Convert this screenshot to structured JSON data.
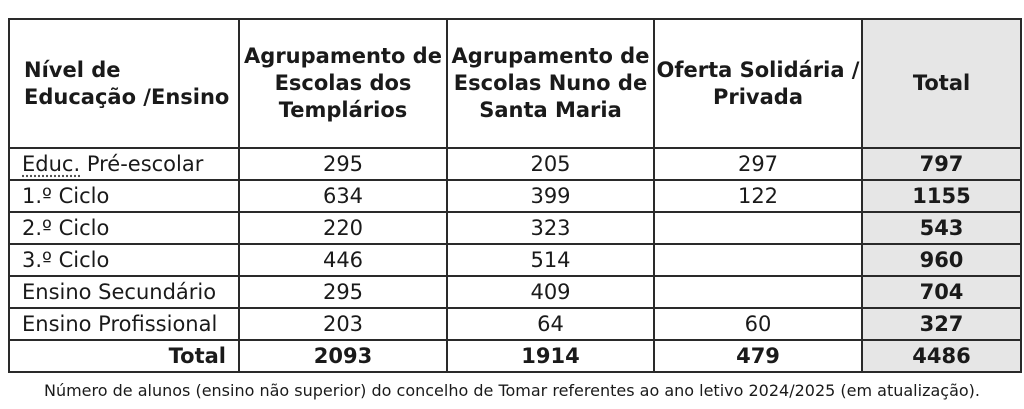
{
  "table": {
    "headers": [
      "Nível de Educação /Ensino",
      "Agrupamento de Escolas dos Templários",
      "Agrupamento de Escolas Nuno de Santa Maria",
      "Oferta Solidária / Privada",
      "Total"
    ],
    "rows": [
      {
        "label_a": "Educ.",
        "label_b": " Pré-escolar",
        "c1": "295",
        "c2": "205",
        "c3": "297",
        "total": "797"
      },
      {
        "label": "1.º Ciclo",
        "c1": "634",
        "c2": "399",
        "c3": "122",
        "total": "1155"
      },
      {
        "label": "2.º Ciclo",
        "c1": "220",
        "c2": "323",
        "c3": "",
        "total": "543"
      },
      {
        "label": "3.º Ciclo",
        "c1": "446",
        "c2": "514",
        "c3": "",
        "total": "960"
      },
      {
        "label": "Ensino Secundário",
        "c1": "295",
        "c2": "409",
        "c3": "",
        "total": "704"
      },
      {
        "label": "Ensino Profissional",
        "c1": "203",
        "c2": "64",
        "c3": "60",
        "total": "327"
      }
    ],
    "footer": {
      "label": "Total",
      "c1": "2093",
      "c2": "1914",
      "c3": "479",
      "total": "4486"
    }
  },
  "caption": "Número de alunos (ensino não superior) do concelho de Tomar referentes ao ano letivo 2024/2025 (em atualização)."
}
